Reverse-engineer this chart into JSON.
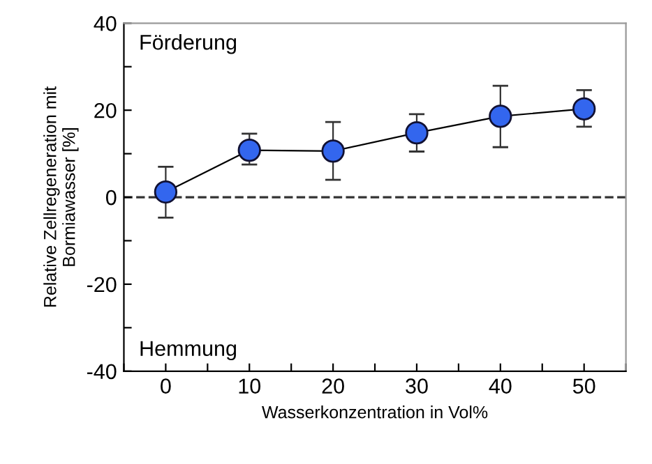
{
  "chart_data": {
    "type": "line",
    "xlabel": "Wasserkonzentration in Vol%",
    "ylabel": "Relative Zellregeneration mit\nBormiawasser [%]",
    "x": [
      0,
      10,
      20,
      30,
      40,
      50
    ],
    "series": [
      {
        "color": "#3366ee",
        "values": [
          1.2,
          10.8,
          10.6,
          14.8,
          18.6,
          20.3
        ],
        "errors": [
          [
            -4.7,
            7.0
          ],
          [
            7.5,
            14.6
          ],
          [
            4.0,
            17.3
          ],
          [
            10.5,
            19.1
          ],
          [
            11.5,
            25.6
          ],
          [
            16.2,
            24.6
          ]
        ]
      }
    ],
    "marker": "circle",
    "line_style": "solid",
    "xlim": [
      -5,
      55
    ],
    "xticks": [
      {
        "value": -5,
        "label": null
      },
      0,
      {
        "value": 5,
        "label": null
      },
      10,
      {
        "value": 15,
        "label": null
      },
      20,
      {
        "value": 25,
        "label": null
      },
      30,
      {
        "value": 35,
        "label": null
      },
      40,
      {
        "value": 45,
        "label": null
      },
      50,
      {
        "value": 55,
        "label": null
      }
    ],
    "ylim": [
      -40,
      40
    ],
    "yticks": [
      -40,
      {
        "value": -30,
        "label": null
      },
      -20,
      {
        "value": -10,
        "label": null
      },
      0,
      {
        "value": 10,
        "label": null
      },
      20,
      {
        "value": 30,
        "label": null
      },
      40
    ],
    "ref_lines": [
      {
        "axis": "y",
        "value": 0,
        "color": "#333333",
        "line_style": "dashed"
      }
    ],
    "annotations": [
      "Förderung",
      "Hemmung"
    ],
    "grid": false,
    "legend": false
  }
}
